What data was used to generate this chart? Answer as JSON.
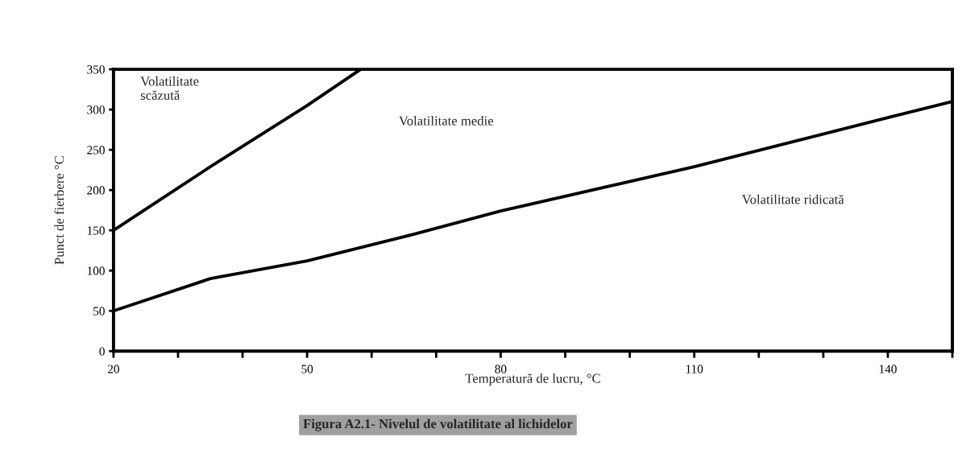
{
  "chart_data": {
    "type": "line",
    "xlabel": "Temperatură de lucru, °C",
    "ylabel": "Punct de fierbere °C",
    "series": [
      {
        "color": "#000000",
        "x": [
          20,
          35,
          50,
          58.3
        ],
        "values": [
          150,
          229,
          305,
          350
        ]
      },
      {
        "color": "#000000",
        "x": [
          20,
          35,
          50,
          65,
          80,
          110,
          140,
          150
        ],
        "values": [
          50,
          90,
          112,
          142,
          174,
          229,
          290,
          310
        ]
      }
    ],
    "xlim": [
      20,
      150
    ],
    "xticks": [
      20,
      {
        "value": 30,
        "label": null
      },
      {
        "value": 40,
        "label": null
      },
      50,
      {
        "value": 60,
        "label": null
      },
      {
        "value": 70,
        "label": null
      },
      80,
      {
        "value": 90,
        "label": null
      },
      {
        "value": 100,
        "label": null
      },
      110,
      {
        "value": 120,
        "label": null
      },
      {
        "value": 130,
        "label": null
      },
      140,
      {
        "value": 150,
        "label": null
      }
    ],
    "ylim": [
      0,
      350
    ],
    "yticks": [
      0,
      50,
      100,
      150,
      200,
      250,
      300,
      350
    ],
    "grid": false,
    "marker": "none",
    "line_style": "solid",
    "annotations": [
      "Volatilitate\nscăzută",
      "Volatilitate medie",
      "Volatilitate ridicată",
      "Figura A2.1- Nivelul de volatilitate al lichidelor"
    ]
  }
}
